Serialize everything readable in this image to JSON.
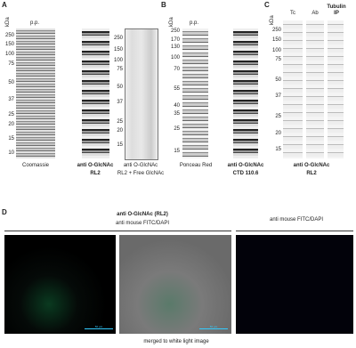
{
  "panel_a": {
    "label": "A",
    "unit": "kDa",
    "marker_note": "p.p.",
    "markers": [
      "250",
      "150",
      "100",
      "75",
      "50",
      "37",
      "25",
      "20",
      "15",
      "10"
    ],
    "markers_right": [
      "250",
      "150",
      "100",
      "75",
      "50",
      "37",
      "25",
      "20",
      "15"
    ],
    "lanes": [
      {
        "lines": [
          "Coomassie"
        ]
      },
      {
        "lines": [
          "anti O-GlcNAc",
          "RL2"
        ]
      },
      {
        "lines": [
          "anti O-GlcNAc",
          "RL2 + Free GlcNAc"
        ]
      }
    ]
  },
  "panel_b": {
    "label": "B",
    "unit": "kDa",
    "marker_note": "p.p.",
    "markers": [
      "250",
      "170",
      "130",
      "100",
      "70",
      "55",
      "40",
      "35",
      "25",
      "15"
    ],
    "lanes": [
      {
        "lines": [
          "Ponceau Red"
        ]
      },
      {
        "lines": [
          "anti O-GlcNAc",
          "CTD 110.6"
        ]
      }
    ]
  },
  "panel_c": {
    "label": "C",
    "unit": "kDa",
    "markers": [
      "250",
      "150",
      "100",
      "75",
      "50",
      "37",
      "25",
      "20",
      "15"
    ],
    "lane_headers": [
      [
        "Tc"
      ],
      [
        "Ab"
      ],
      [
        "Tubulin",
        "IP"
      ]
    ],
    "footer": [
      "anti O-GlcNAc",
      "RL2"
    ]
  },
  "panel_d": {
    "label": "D",
    "header_left": [
      "anti O-GlcNAc (RL2)",
      "anti mouse FITC/DAPI"
    ],
    "header_right": "anti mouse FITC/DAPI",
    "scale_bar": "50 µm",
    "caption": "merged to white light image"
  }
}
